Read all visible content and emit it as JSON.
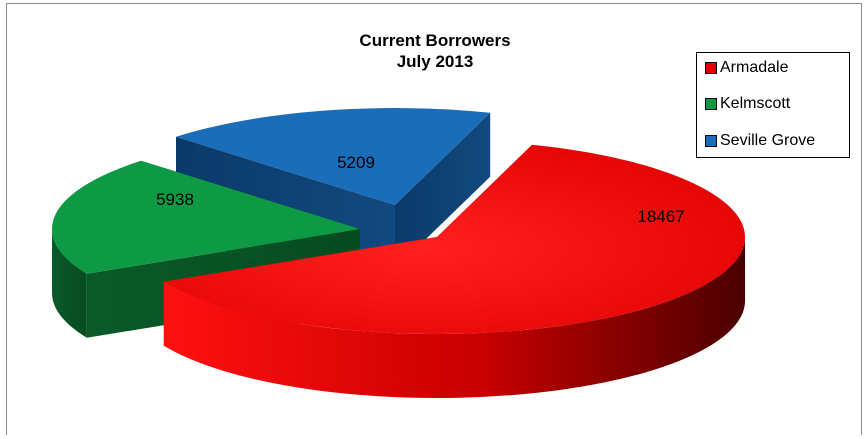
{
  "chart_data": {
    "type": "pie",
    "title": "Current Borrowers",
    "subtitle": "July 2013",
    "categories": [
      "Armadale",
      "Kelmscott",
      "Seville Grove"
    ],
    "values": [
      18467,
      5938,
      5209
    ],
    "colors": [
      "#e20000",
      "#0e9a45",
      "#1a6db8"
    ],
    "legend": "right",
    "exploded": true,
    "style": "3d"
  }
}
